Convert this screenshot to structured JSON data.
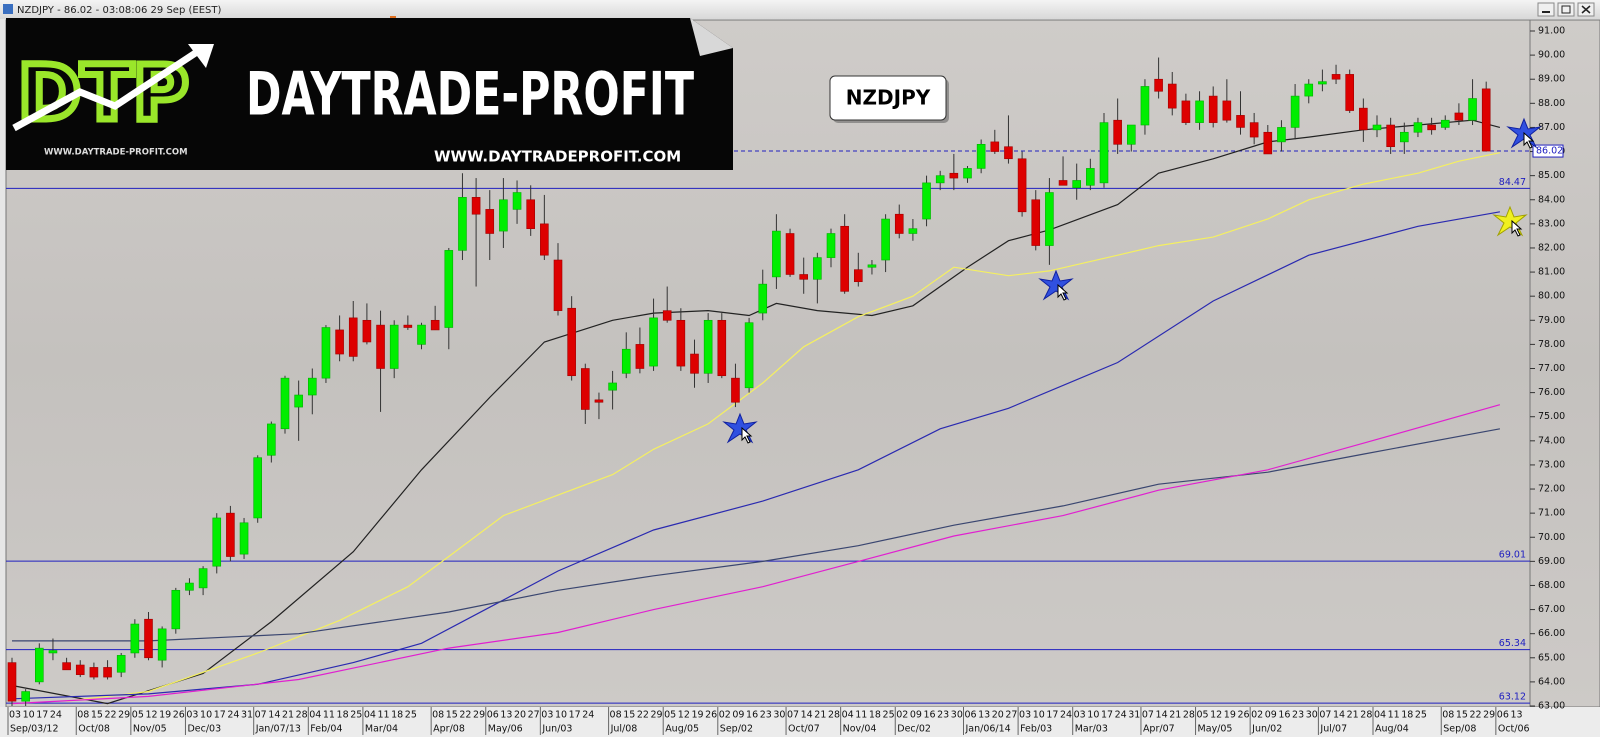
{
  "window_title": "NZDJPY - 86.02 - 03:08:06 29 Sep (EEST)",
  "logo": {
    "mark": "DTP",
    "name": "DAYTRADE-PROFIT",
    "url_small": "WWW.DAYTRADE-PROFIT.COM",
    "url": "WWW.DAYTRADEPROFIT.COM"
  },
  "chart_data": {
    "type": "candlestick",
    "title": "NZDJPY",
    "categories": [
      "03",
      "10",
      "17",
      "24",
      null,
      "08",
      "15",
      "22",
      "29",
      "05",
      "12",
      "19",
      "26",
      "03",
      "10",
      "17",
      "24",
      "31",
      "07",
      "14",
      "21",
      "28",
      "04",
      "11",
      "18",
      "25",
      "04",
      "11",
      "18",
      "25",
      null,
      "08",
      "15",
      "22",
      "29",
      "06",
      "13",
      "20",
      "27",
      "03",
      "10",
      "17",
      "24",
      null,
      "08",
      "15",
      "22",
      "29",
      "05",
      "12",
      "19",
      "26",
      "02",
      "09",
      "16",
      "23",
      "30",
      "07",
      "14",
      "21",
      "28",
      "04",
      "11",
      "18",
      "25",
      "02",
      "09",
      "16",
      "23",
      "30",
      "06",
      "13",
      "20",
      "27",
      "03",
      "10",
      "17",
      "24",
      "03",
      "10",
      "17",
      "24",
      "31",
      "07",
      "14",
      "21",
      "28",
      "05",
      "12",
      "19",
      "26",
      "02",
      "09",
      "16",
      "23",
      "30",
      "07",
      "14",
      "21",
      "28",
      "04",
      "11",
      "18",
      "25",
      null,
      "08",
      "15",
      "22",
      "29",
      "06",
      "13"
    ],
    "month_labels": [
      "Sep/03/12",
      null,
      null,
      null,
      null,
      "Oct/08",
      null,
      null,
      null,
      "Nov/05",
      null,
      null,
      null,
      "Dec/03",
      null,
      null,
      null,
      null,
      "Jan/07/13",
      null,
      null,
      null,
      "Feb/04",
      null,
      null,
      null,
      "Mar/04",
      null,
      null,
      null,
      null,
      "Apr/08",
      null,
      null,
      null,
      "May/06",
      null,
      null,
      null,
      "Jun/03",
      null,
      null,
      null,
      null,
      "Jul/08",
      null,
      null,
      null,
      "Aug/05",
      null,
      null,
      null,
      "Sep/02",
      null,
      null,
      null,
      null,
      "Oct/07",
      null,
      null,
      null,
      "Nov/04",
      null,
      null,
      null,
      "Dec/02",
      null,
      null,
      null,
      null,
      "Jan/06/14",
      null,
      null,
      null,
      "Feb/03",
      null,
      null,
      null,
      "Mar/03",
      null,
      null,
      null,
      null,
      "Apr/07",
      null,
      null,
      null,
      "May/05",
      null,
      null,
      null,
      "Jun/02",
      null,
      null,
      null,
      null,
      "Jul/07",
      null,
      null,
      null,
      "Aug/04",
      null,
      null,
      null,
      null,
      "Sep/08",
      null,
      null,
      null,
      "Oct/06",
      null
    ],
    "open": [
      64.8,
      63.2,
      64.0,
      65.2,
      64.8,
      64.7,
      64.6,
      64.6,
      64.4,
      65.2,
      66.6,
      64.9,
      66.2,
      67.8,
      67.9,
      68.8,
      71.0,
      69.3,
      70.8,
      73.4,
      74.5,
      75.4,
      75.9,
      76.6,
      78.6,
      79.1,
      79.0,
      78.8,
      77.0,
      78.8,
      78.0,
      79.0,
      78.7,
      81.9,
      84.1,
      83.6,
      82.7,
      83.6,
      84.0,
      83.0,
      81.5,
      79.5,
      77.0,
      75.7,
      76.1,
      76.8,
      78.0,
      77.1,
      79.4,
      79.0,
      77.6,
      76.8,
      79.0,
      76.6,
      76.2,
      79.3,
      80.8,
      82.6,
      80.9,
      80.7,
      81.6,
      82.9,
      81.1,
      81.2,
      81.5,
      83.4,
      82.6,
      83.2,
      84.7,
      85.1,
      84.9,
      85.3,
      86.4,
      86.2,
      85.7,
      84.0,
      82.1,
      84.8,
      84.5,
      84.6,
      84.7,
      87.3,
      86.3,
      87.1,
      89.0,
      88.8,
      88.1,
      87.2,
      88.3,
      88.1,
      87.5,
      87.2,
      86.8,
      86.4,
      87.0,
      88.3,
      88.8,
      89.2,
      89.2,
      87.8,
      86.9,
      87.1,
      86.4,
      86.8,
      87.1,
      87.0,
      87.6,
      87.3,
      88.6,
      null,
      null
    ],
    "high": [
      65.0,
      63.7,
      65.6,
      65.8,
      65.0,
      64.9,
      64.8,
      64.9,
      65.2,
      66.6,
      66.9,
      66.3,
      67.9,
      68.3,
      68.8,
      71.0,
      71.3,
      70.8,
      73.4,
      74.8,
      76.7,
      76.5,
      77.0,
      78.8,
      79.2,
      79.8,
      79.7,
      79.4,
      79.0,
      79.2,
      78.9,
      79.6,
      82.0,
      85.1,
      84.9,
      84.4,
      84.9,
      84.8,
      84.6,
      84.2,
      82.2,
      80.0,
      77.2,
      76.0,
      76.9,
      78.5,
      78.7,
      79.9,
      80.4,
      79.5,
      78.2,
      79.3,
      79.3,
      77.2,
      79.1,
      81.1,
      83.4,
      82.8,
      81.6,
      81.8,
      82.8,
      83.4,
      81.8,
      81.5,
      83.4,
      83.8,
      83.2,
      85.0,
      85.2,
      85.9,
      85.4,
      86.5,
      86.9,
      87.5,
      86.0,
      84.4,
      84.9,
      85.8,
      85.5,
      85.7,
      87.6,
      88.2,
      87.1,
      89.0,
      89.9,
      89.3,
      88.4,
      88.5,
      88.7,
      89.0,
      88.5,
      87.6,
      87.1,
      87.3,
      88.8,
      89.0,
      89.4,
      89.6,
      89.4,
      88.2,
      87.5,
      87.4,
      87.2,
      87.4,
      87.4,
      87.5,
      88.0,
      89.0,
      88.9,
      null,
      null
    ],
    "low": [
      63.0,
      63.0,
      63.9,
      64.9,
      64.5,
      64.2,
      64.1,
      64.1,
      64.2,
      65.0,
      64.9,
      64.6,
      66.0,
      67.6,
      67.6,
      68.5,
      69.0,
      69.1,
      70.6,
      73.1,
      74.3,
      74.0,
      75.1,
      76.4,
      77.3,
      77.3,
      78.0,
      75.2,
      76.6,
      78.6,
      77.8,
      78.6,
      77.8,
      81.5,
      80.4,
      81.5,
      82.0,
      83.0,
      82.5,
      81.5,
      79.2,
      76.5,
      74.7,
      74.9,
      75.3,
      76.6,
      76.8,
      76.9,
      78.9,
      76.9,
      76.2,
      76.4,
      76.6,
      75.4,
      76.0,
      79.0,
      80.3,
      80.8,
      80.1,
      79.7,
      81.2,
      80.1,
      80.4,
      80.9,
      81.0,
      82.4,
      82.3,
      82.9,
      84.4,
      84.4,
      84.7,
      85.1,
      85.9,
      85.5,
      83.3,
      81.9,
      81.3,
      84.6,
      84.0,
      84.4,
      84.5,
      85.9,
      86.0,
      86.7,
      88.2,
      87.5,
      87.1,
      86.9,
      87.0,
      87.2,
      86.7,
      86.3,
      85.9,
      86.0,
      86.5,
      88.0,
      88.5,
      88.8,
      87.6,
      86.4,
      86.6,
      85.9,
      85.9,
      86.6,
      86.7,
      86.9,
      87.1,
      87.1,
      86.0,
      null,
      null
    ],
    "close": [
      63.2,
      63.6,
      65.4,
      65.3,
      64.5,
      64.3,
      64.2,
      64.2,
      65.1,
      66.4,
      65.0,
      66.2,
      67.8,
      68.1,
      68.7,
      70.8,
      69.2,
      70.6,
      73.3,
      74.7,
      76.6,
      75.9,
      76.6,
      78.7,
      77.6,
      77.5,
      78.1,
      77.0,
      78.8,
      78.7,
      78.8,
      78.6,
      81.9,
      84.1,
      83.4,
      82.6,
      84.0,
      84.3,
      82.8,
      81.7,
      79.4,
      76.7,
      75.3,
      75.6,
      76.4,
      77.8,
      77.0,
      79.1,
      79.0,
      77.1,
      76.8,
      79.0,
      76.7,
      75.6,
      78.9,
      80.5,
      82.7,
      80.9,
      80.7,
      81.6,
      82.6,
      80.2,
      80.6,
      81.3,
      83.2,
      82.6,
      82.8,
      84.7,
      85.0,
      84.9,
      85.3,
      86.3,
      86.0,
      85.7,
      83.5,
      82.1,
      84.3,
      84.6,
      84.8,
      85.3,
      87.2,
      86.3,
      87.1,
      88.7,
      88.5,
      87.8,
      87.2,
      88.1,
      87.2,
      87.3,
      87.0,
      86.6,
      85.9,
      87.0,
      88.3,
      88.8,
      88.9,
      89.0,
      87.7,
      86.9,
      87.1,
      86.2,
      86.8,
      87.2,
      86.9,
      87.3,
      87.3,
      88.2,
      86.02,
      null,
      null
    ],
    "up_color": "#00ee00",
    "down_color": "#dd0000",
    "lines": [
      {
        "color": "#222222",
        "x": [
          0,
          7,
          14,
          19,
          25,
          30,
          35,
          39,
          44,
          47,
          51,
          54,
          56,
          59,
          63,
          66,
          70,
          73,
          76,
          81,
          84,
          88,
          92,
          95,
          99,
          103,
          107,
          109
        ],
        "values": [
          63.85,
          63.1,
          64.35,
          66.5,
          69.4,
          72.8,
          75.8,
          78.1,
          79.0,
          79.3,
          79.4,
          79.2,
          79.7,
          79.4,
          79.2,
          79.6,
          81.2,
          82.3,
          82.75,
          83.8,
          85.1,
          85.7,
          86.4,
          86.6,
          86.9,
          87.1,
          87.3,
          87.0
        ]
      },
      {
        "color": "#f5f060",
        "x": [
          4,
          10,
          18,
          24,
          29,
          32,
          36,
          40,
          44,
          47,
          51,
          55,
          58,
          62,
          66,
          69,
          73,
          76,
          81,
          84,
          88,
          92,
          95,
          99,
          103,
          106,
          109
        ],
        "values": [
          63.2,
          63.6,
          65.2,
          66.55,
          67.95,
          69.2,
          70.9,
          71.75,
          72.6,
          73.65,
          74.7,
          76.4,
          77.9,
          79.15,
          80.0,
          81.2,
          80.85,
          81.05,
          81.7,
          82.1,
          82.45,
          83.2,
          84.0,
          84.65,
          85.1,
          85.6,
          85.95
        ]
      },
      {
        "color": "#2a2ab0",
        "x": [
          0,
          10,
          18,
          25,
          30,
          35,
          40,
          47,
          55,
          62,
          68,
          73,
          81,
          88,
          95,
          103,
          109
        ],
        "values": [
          63.3,
          63.5,
          63.9,
          64.8,
          65.6,
          67.1,
          68.6,
          70.3,
          71.5,
          72.8,
          74.5,
          75.35,
          77.25,
          79.8,
          81.7,
          82.9,
          83.5
        ]
      },
      {
        "color": "#3a4670",
        "x": [
          0,
          10,
          21,
          32,
          40,
          47,
          55,
          62,
          69,
          77,
          84,
          92,
          99,
          109
        ],
        "values": [
          65.7,
          65.7,
          66.0,
          66.9,
          67.8,
          68.4,
          69.0,
          69.65,
          70.5,
          71.3,
          72.2,
          72.7,
          73.45,
          74.5
        ]
      },
      {
        "color": "#e020d0",
        "x": [
          0,
          10,
          21,
          32,
          40,
          47,
          55,
          62,
          69,
          77,
          84,
          92,
          99,
          109
        ],
        "values": [
          63.1,
          63.4,
          64.1,
          65.4,
          66.05,
          67.0,
          67.95,
          69.0,
          70.05,
          70.9,
          71.95,
          72.8,
          73.9,
          75.5
        ]
      }
    ],
    "levels": [
      84.47,
      69.01,
      65.34,
      63.12
    ],
    "level_color": "#2020c0",
    "current_price": 86.02,
    "ylim": [
      63,
      91
    ],
    "yticks": [
      {
        "value": 63,
        "label": "63.00"
      },
      {
        "value": 64,
        "label": "64.00"
      },
      {
        "value": 65,
        "label": "65.00"
      },
      {
        "value": 66,
        "label": "66.00"
      },
      {
        "value": 67,
        "label": "67.00"
      },
      {
        "value": 68,
        "label": "68.00"
      },
      {
        "value": 69,
        "label": "69.00"
      },
      {
        "value": 70,
        "label": "70.00"
      },
      {
        "value": 71,
        "label": "71.00"
      },
      {
        "value": 72,
        "label": "72.00"
      },
      {
        "value": 73,
        "label": "73.00"
      },
      {
        "value": 74,
        "label": "74.00"
      },
      {
        "value": 75,
        "label": "75.00"
      },
      {
        "value": 76,
        "label": "76.00"
      },
      {
        "value": 77,
        "label": "77.00"
      },
      {
        "value": 78,
        "label": "78.00"
      },
      {
        "value": 79,
        "label": "79.00"
      },
      {
        "value": 80,
        "label": "80.00"
      },
      {
        "value": 81,
        "label": "81.00"
      },
      {
        "value": 82,
        "label": "82.00"
      },
      {
        "value": 83,
        "label": "83.00"
      },
      {
        "value": 84,
        "label": "84.00"
      },
      {
        "value": 85,
        "label": "85.00"
      },
      {
        "value": 86,
        "label": "86.00"
      },
      {
        "value": 87,
        "label": "87.00"
      },
      {
        "value": 88,
        "label": "88.00"
      },
      {
        "value": 89,
        "label": "89.00"
      },
      {
        "value": 90,
        "label": "90.00"
      },
      {
        "value": 91,
        "label": "91.00"
      }
    ]
  }
}
